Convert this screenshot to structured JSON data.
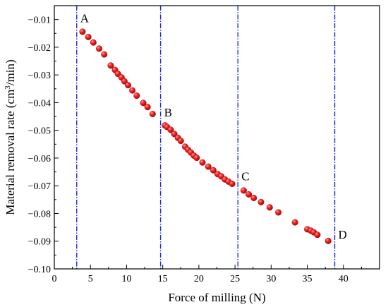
{
  "chart_data": {
    "type": "scatter",
    "xlabel": "Force of milling (N)",
    "ylabel_main": "Material removal rate (cm",
    "ylabel_sup": "3",
    "ylabel_end": "/min)",
    "xlim": [
      0,
      45
    ],
    "ylim": [
      -0.1,
      -0.005
    ],
    "xticks": [
      0,
      5,
      10,
      15,
      20,
      25,
      30,
      35,
      40
    ],
    "yticks": [
      -0.1,
      -0.09,
      -0.08,
      -0.07,
      -0.06,
      -0.05,
      -0.04,
      -0.03,
      -0.02,
      -0.01
    ],
    "grid": false,
    "marker_color": "#e8141b",
    "vline_color": "#1f2fd6",
    "vlines": [
      {
        "x": 3.1,
        "label": "A",
        "label_y": -0.0095
      },
      {
        "x": 14.7,
        "label": "B",
        "label_y": -0.0435
      },
      {
        "x": 25.4,
        "label": "C",
        "label_y": -0.0665
      },
      {
        "x": 38.8,
        "label": "D",
        "label_y": -0.0875
      }
    ],
    "points": [
      [
        3.9,
        -0.0144
      ],
      [
        4.7,
        -0.0163
      ],
      [
        5.4,
        -0.0183
      ],
      [
        6.2,
        -0.0205
      ],
      [
        6.9,
        -0.0226
      ],
      [
        7.8,
        -0.0266
      ],
      [
        8.4,
        -0.0282
      ],
      [
        8.8,
        -0.0296
      ],
      [
        9.3,
        -0.0309
      ],
      [
        9.7,
        -0.0323
      ],
      [
        10.2,
        -0.0337
      ],
      [
        10.8,
        -0.0356
      ],
      [
        11.4,
        -0.0375
      ],
      [
        12.3,
        -0.0401
      ],
      [
        12.9,
        -0.0416
      ],
      [
        13.6,
        -0.0441
      ],
      [
        15.3,
        -0.0482
      ],
      [
        15.6,
        -0.0488
      ],
      [
        16.1,
        -0.0498
      ],
      [
        16.6,
        -0.0513
      ],
      [
        17.1,
        -0.0527
      ],
      [
        17.5,
        -0.0538
      ],
      [
        18.1,
        -0.0559
      ],
      [
        18.5,
        -0.057
      ],
      [
        18.9,
        -0.058
      ],
      [
        19.3,
        -0.0591
      ],
      [
        19.7,
        -0.0599
      ],
      [
        20.5,
        -0.0616
      ],
      [
        21.3,
        -0.0631
      ],
      [
        22.0,
        -0.0644
      ],
      [
        22.6,
        -0.0658
      ],
      [
        23.1,
        -0.0666
      ],
      [
        23.6,
        -0.0677
      ],
      [
        24.1,
        -0.0685
      ],
      [
        24.6,
        -0.0693
      ],
      [
        26.2,
        -0.0717
      ],
      [
        26.9,
        -0.0731
      ],
      [
        27.6,
        -0.0744
      ],
      [
        28.6,
        -0.0759
      ],
      [
        29.8,
        -0.0778
      ],
      [
        31.0,
        -0.0796
      ],
      [
        33.3,
        -0.0832
      ],
      [
        35.0,
        -0.0857
      ],
      [
        35.5,
        -0.0862
      ],
      [
        35.9,
        -0.0868
      ],
      [
        36.4,
        -0.0877
      ],
      [
        37.9,
        -0.0899
      ]
    ]
  }
}
